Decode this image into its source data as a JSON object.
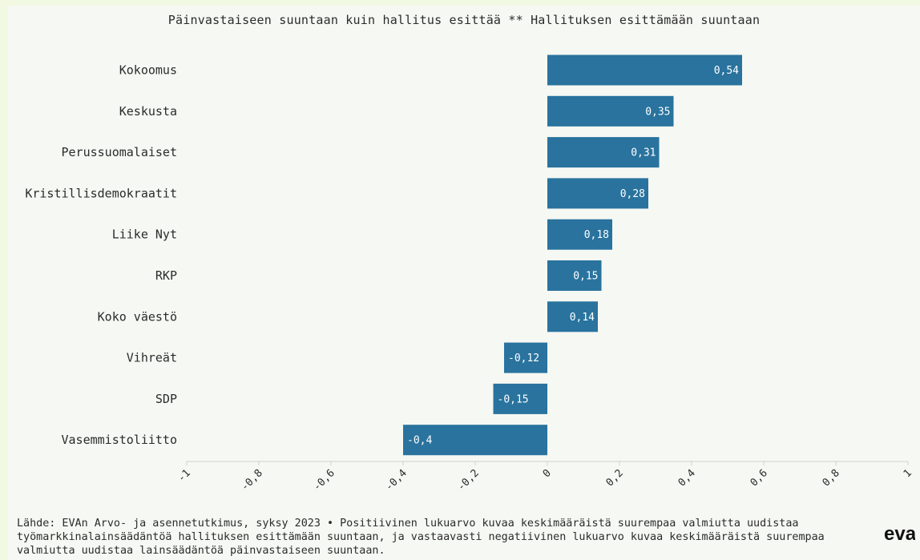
{
  "chart_data": {
    "type": "bar",
    "orientation": "horizontal",
    "title": "Päinvastaiseen suuntaan kuin hallitus esittää ** Hallituksen esittämään suuntaan",
    "categories": [
      "Kokoomus",
      "Keskusta",
      "Perussuomalaiset",
      "Kristillisdemokraatit",
      "Liike Nyt",
      "RKP",
      "Koko väestö",
      "Vihreät",
      "SDP",
      "Vasemmistoliitto"
    ],
    "values": [
      0.54,
      0.35,
      0.31,
      0.28,
      0.18,
      0.15,
      0.14,
      -0.12,
      -0.15,
      -0.4
    ],
    "value_labels": [
      "0,54",
      "0,35",
      "0,31",
      "0,28",
      "0,18",
      "0,15",
      "0,14",
      "-0,12",
      "-0,15",
      "-0,4"
    ],
    "xlim": [
      -1,
      1
    ],
    "x_ticks": [
      -1,
      -0.8,
      -0.6,
      -0.4,
      -0.2,
      0,
      0.2,
      0.4,
      0.6,
      0.8,
      1
    ],
    "x_tick_labels": [
      "-1",
      "-0,8",
      "-0,6",
      "-0,4",
      "-0,2",
      "0",
      "0,2",
      "0,4",
      "0,6",
      "0,8",
      "1"
    ],
    "bar_color": "#29739e",
    "grid": false,
    "legend": "none"
  },
  "footer": {
    "source_text": "Lähde: EVAn Arvo- ja asennetutkimus, syksy 2023 • Positiivinen lukuarvo kuvaa keskimääräistä suurempaa valmiutta uudistaa työmarkkinalainsäädäntöä hallituksen esittämään suuntaan, ja vastaavasti negatiivinen lukuarvo kuvaa keskimääräistä suurempaa valmiutta uudistaa lainsäädäntöä päinvastaiseen suuntaan."
  },
  "brand": {
    "logo_text": "eva"
  }
}
